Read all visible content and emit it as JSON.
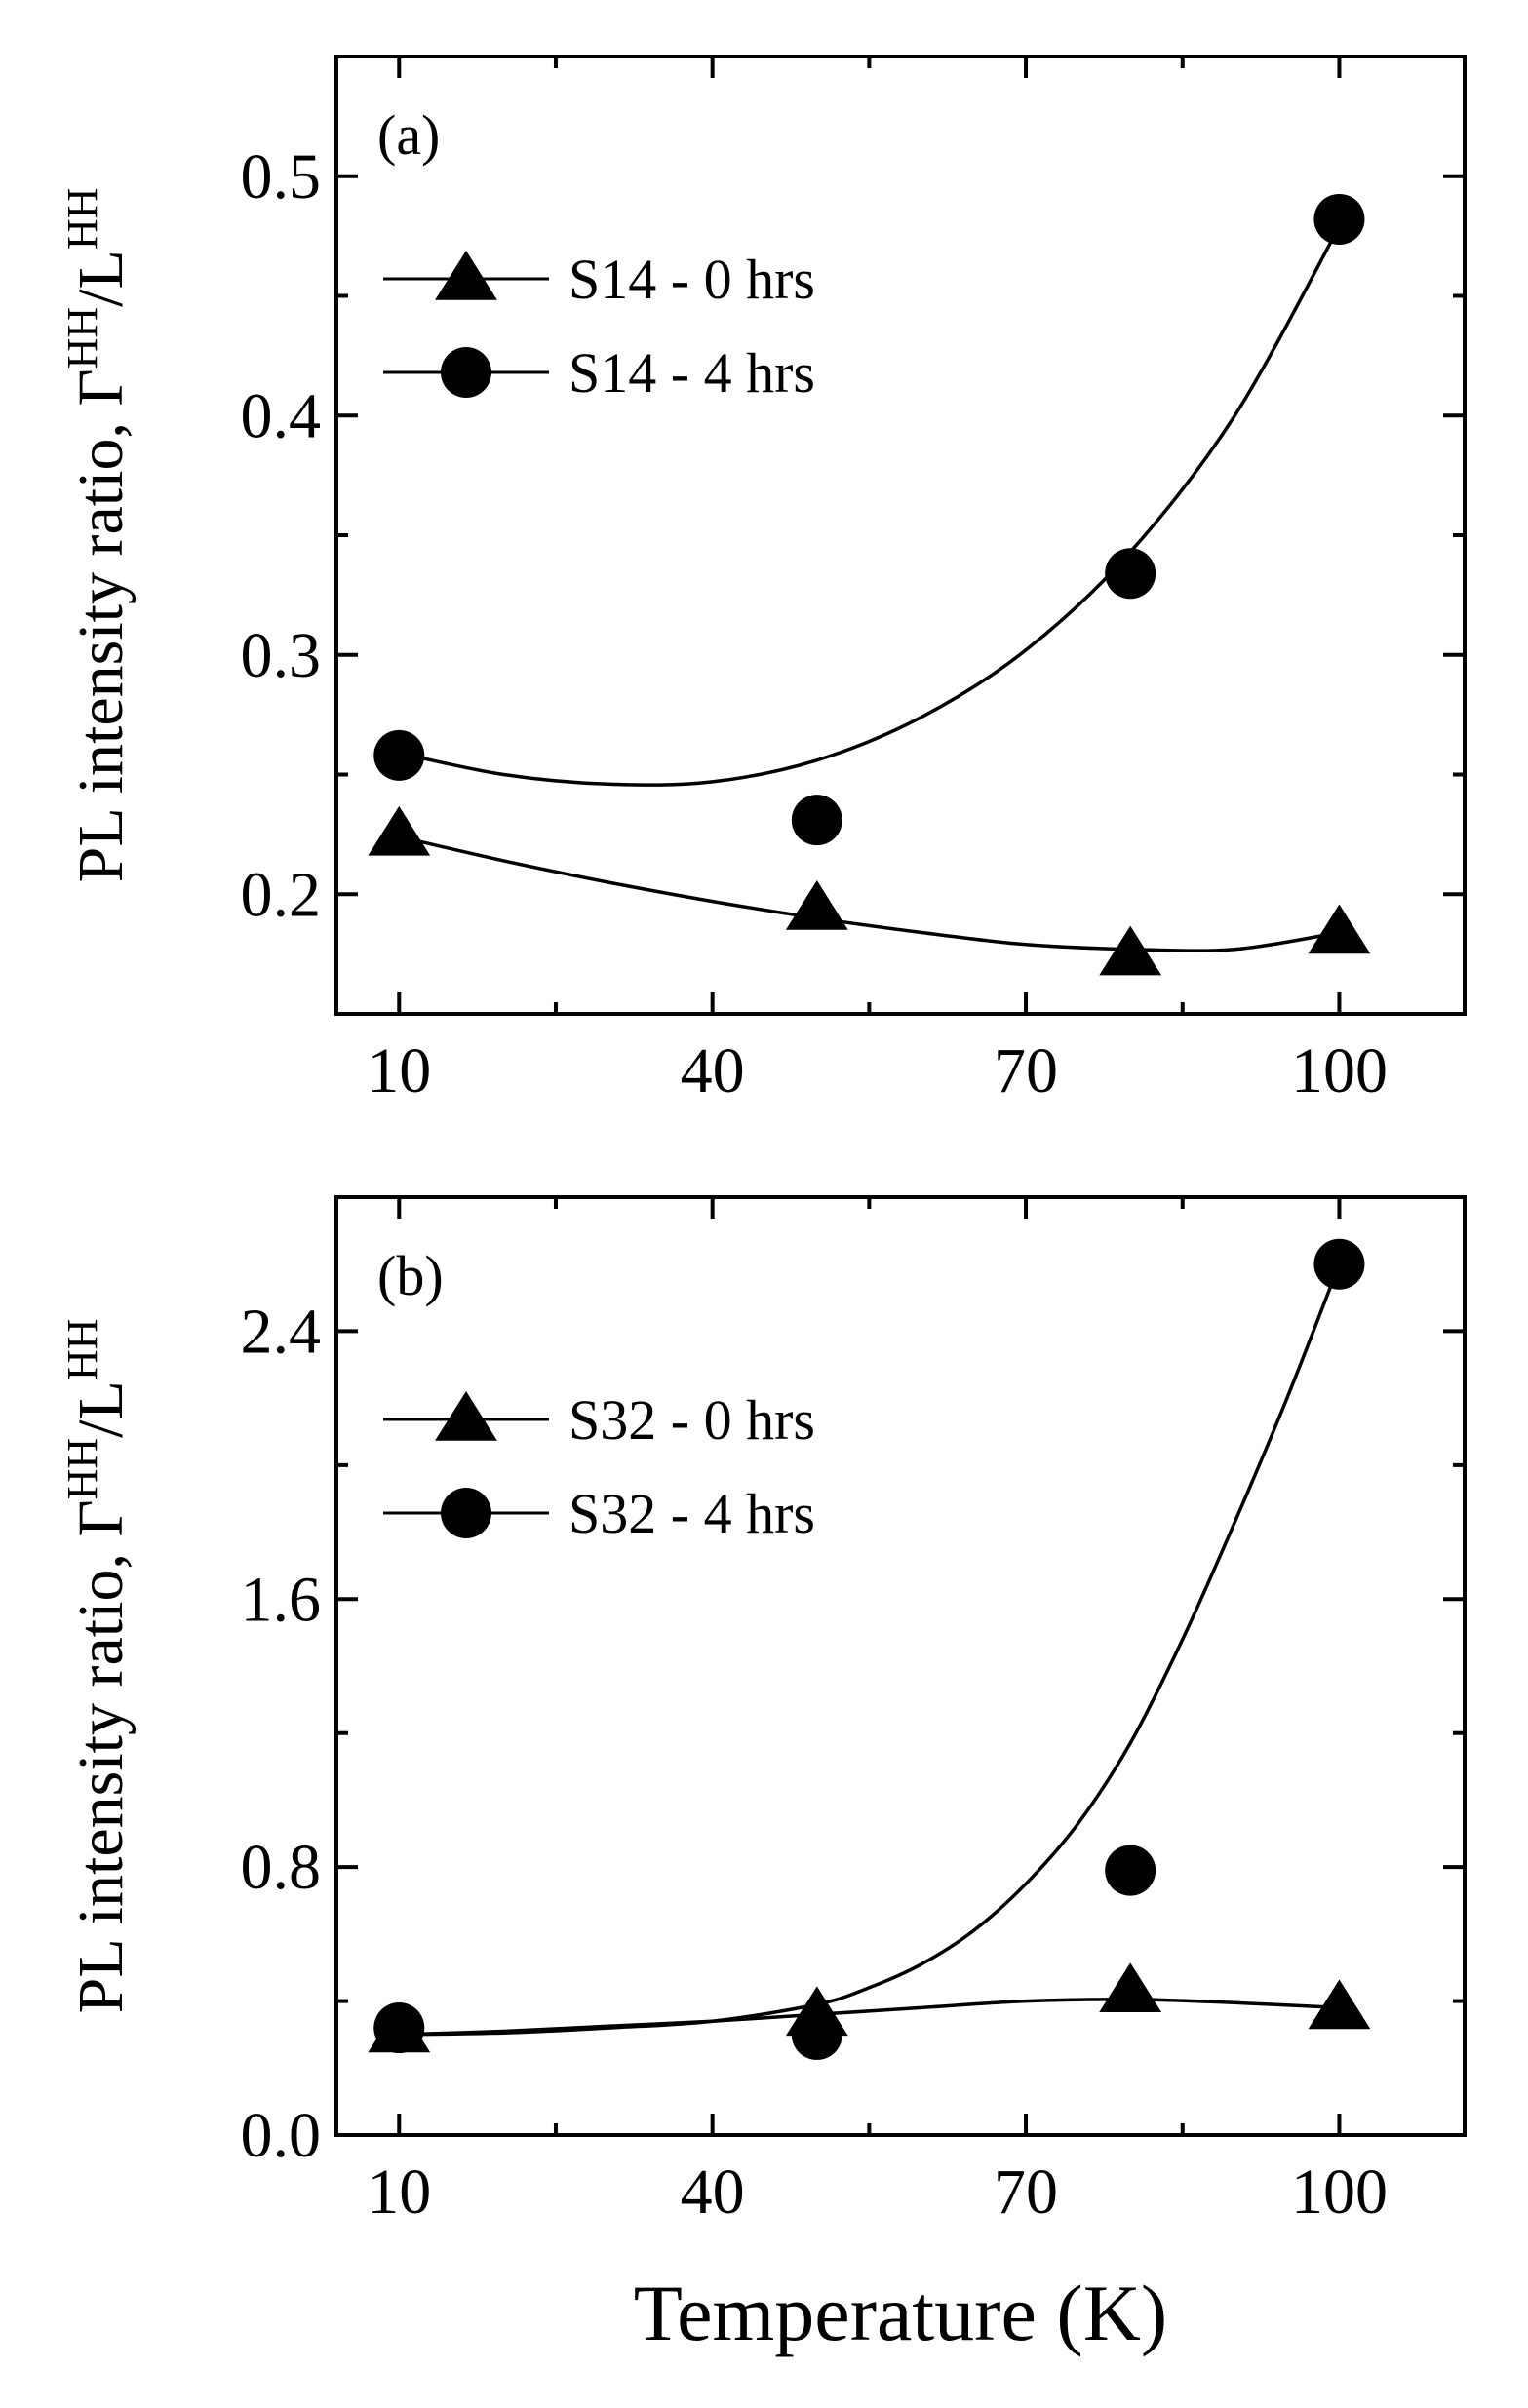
{
  "chart_data": [
    {
      "type": "scatter",
      "panel_label": "(a)",
      "xlabel": "",
      "ylabel_text": "PL intensity ratio, Γ",
      "ylabel_sup1": "HH",
      "ylabel_sep": "/L",
      "ylabel_sup2": "HH",
      "xlim": [
        4,
        112
      ],
      "ylim": [
        0.15,
        0.55
      ],
      "xticks": [
        10,
        40,
        70,
        100
      ],
      "xtick_labels": [
        "10",
        "40",
        "70",
        "100"
      ],
      "yticks": [
        0.2,
        0.3,
        0.4,
        0.5
      ],
      "ytick_labels": [
        "0.2",
        "0.3",
        "0.4",
        "0.5"
      ],
      "legend_position": "top-left",
      "series": [
        {
          "name": "S14 - 0 hrs",
          "marker": "triangle",
          "x": [
            10,
            50,
            80,
            100
          ],
          "y": [
            0.225,
            0.194,
            0.175,
            0.184
          ],
          "fit_x": [
            10,
            20,
            30,
            40,
            50,
            60,
            70,
            80,
            90,
            100
          ],
          "fit_y": [
            0.224,
            0.214,
            0.205,
            0.197,
            0.19,
            0.184,
            0.179,
            0.177,
            0.177,
            0.184
          ]
        },
        {
          "name": "S14 - 4 hrs",
          "marker": "circle",
          "x": [
            10,
            50,
            80,
            100
          ],
          "y": [
            0.258,
            0.231,
            0.334,
            0.482
          ],
          "fit_x": [
            10,
            20,
            30,
            40,
            50,
            60,
            70,
            80,
            90,
            100
          ],
          "fit_y": [
            0.259,
            0.25,
            0.246,
            0.247,
            0.256,
            0.274,
            0.302,
            0.343,
            0.4,
            0.479
          ]
        }
      ]
    },
    {
      "type": "scatter",
      "panel_label": "(b)",
      "xlabel": "Temperature (K)",
      "ylabel_text": "PL intensity ratio, Γ",
      "ylabel_sup1": "HH",
      "ylabel_sep": "/L",
      "ylabel_sup2": "HH",
      "xlim": [
        4,
        112
      ],
      "ylim": [
        0.0,
        2.8
      ],
      "xticks": [
        10,
        40,
        70,
        100
      ],
      "xtick_labels": [
        "10",
        "40",
        "70",
        "100"
      ],
      "yticks": [
        0.0,
        0.8,
        1.6,
        2.4
      ],
      "ytick_labels": [
        "0.0",
        "0.8",
        "1.6",
        "2.4"
      ],
      "legend_position": "top-left",
      "series": [
        {
          "name": "S32 - 0 hrs",
          "marker": "triangle",
          "x": [
            10,
            50,
            80,
            100
          ],
          "y": [
            0.31,
            0.36,
            0.43,
            0.38
          ],
          "fit_x": [
            10,
            20,
            30,
            40,
            50,
            60,
            70,
            80,
            90,
            100
          ],
          "fit_y": [
            0.3,
            0.31,
            0.325,
            0.34,
            0.36,
            0.38,
            0.4,
            0.405,
            0.395,
            0.38
          ]
        },
        {
          "name": "S32 - 4 hrs",
          "marker": "circle",
          "x": [
            10,
            50,
            80,
            100
          ],
          "y": [
            0.32,
            0.3,
            0.79,
            2.6
          ],
          "fit_x": [
            10,
            20,
            30,
            40,
            50,
            55,
            60,
            65,
            70,
            75,
            80,
            85,
            90,
            95,
            100
          ],
          "fit_y": [
            0.3,
            0.305,
            0.32,
            0.34,
            0.39,
            0.44,
            0.51,
            0.61,
            0.75,
            0.93,
            1.17,
            1.48,
            1.83,
            2.2,
            2.6
          ]
        }
      ]
    }
  ]
}
